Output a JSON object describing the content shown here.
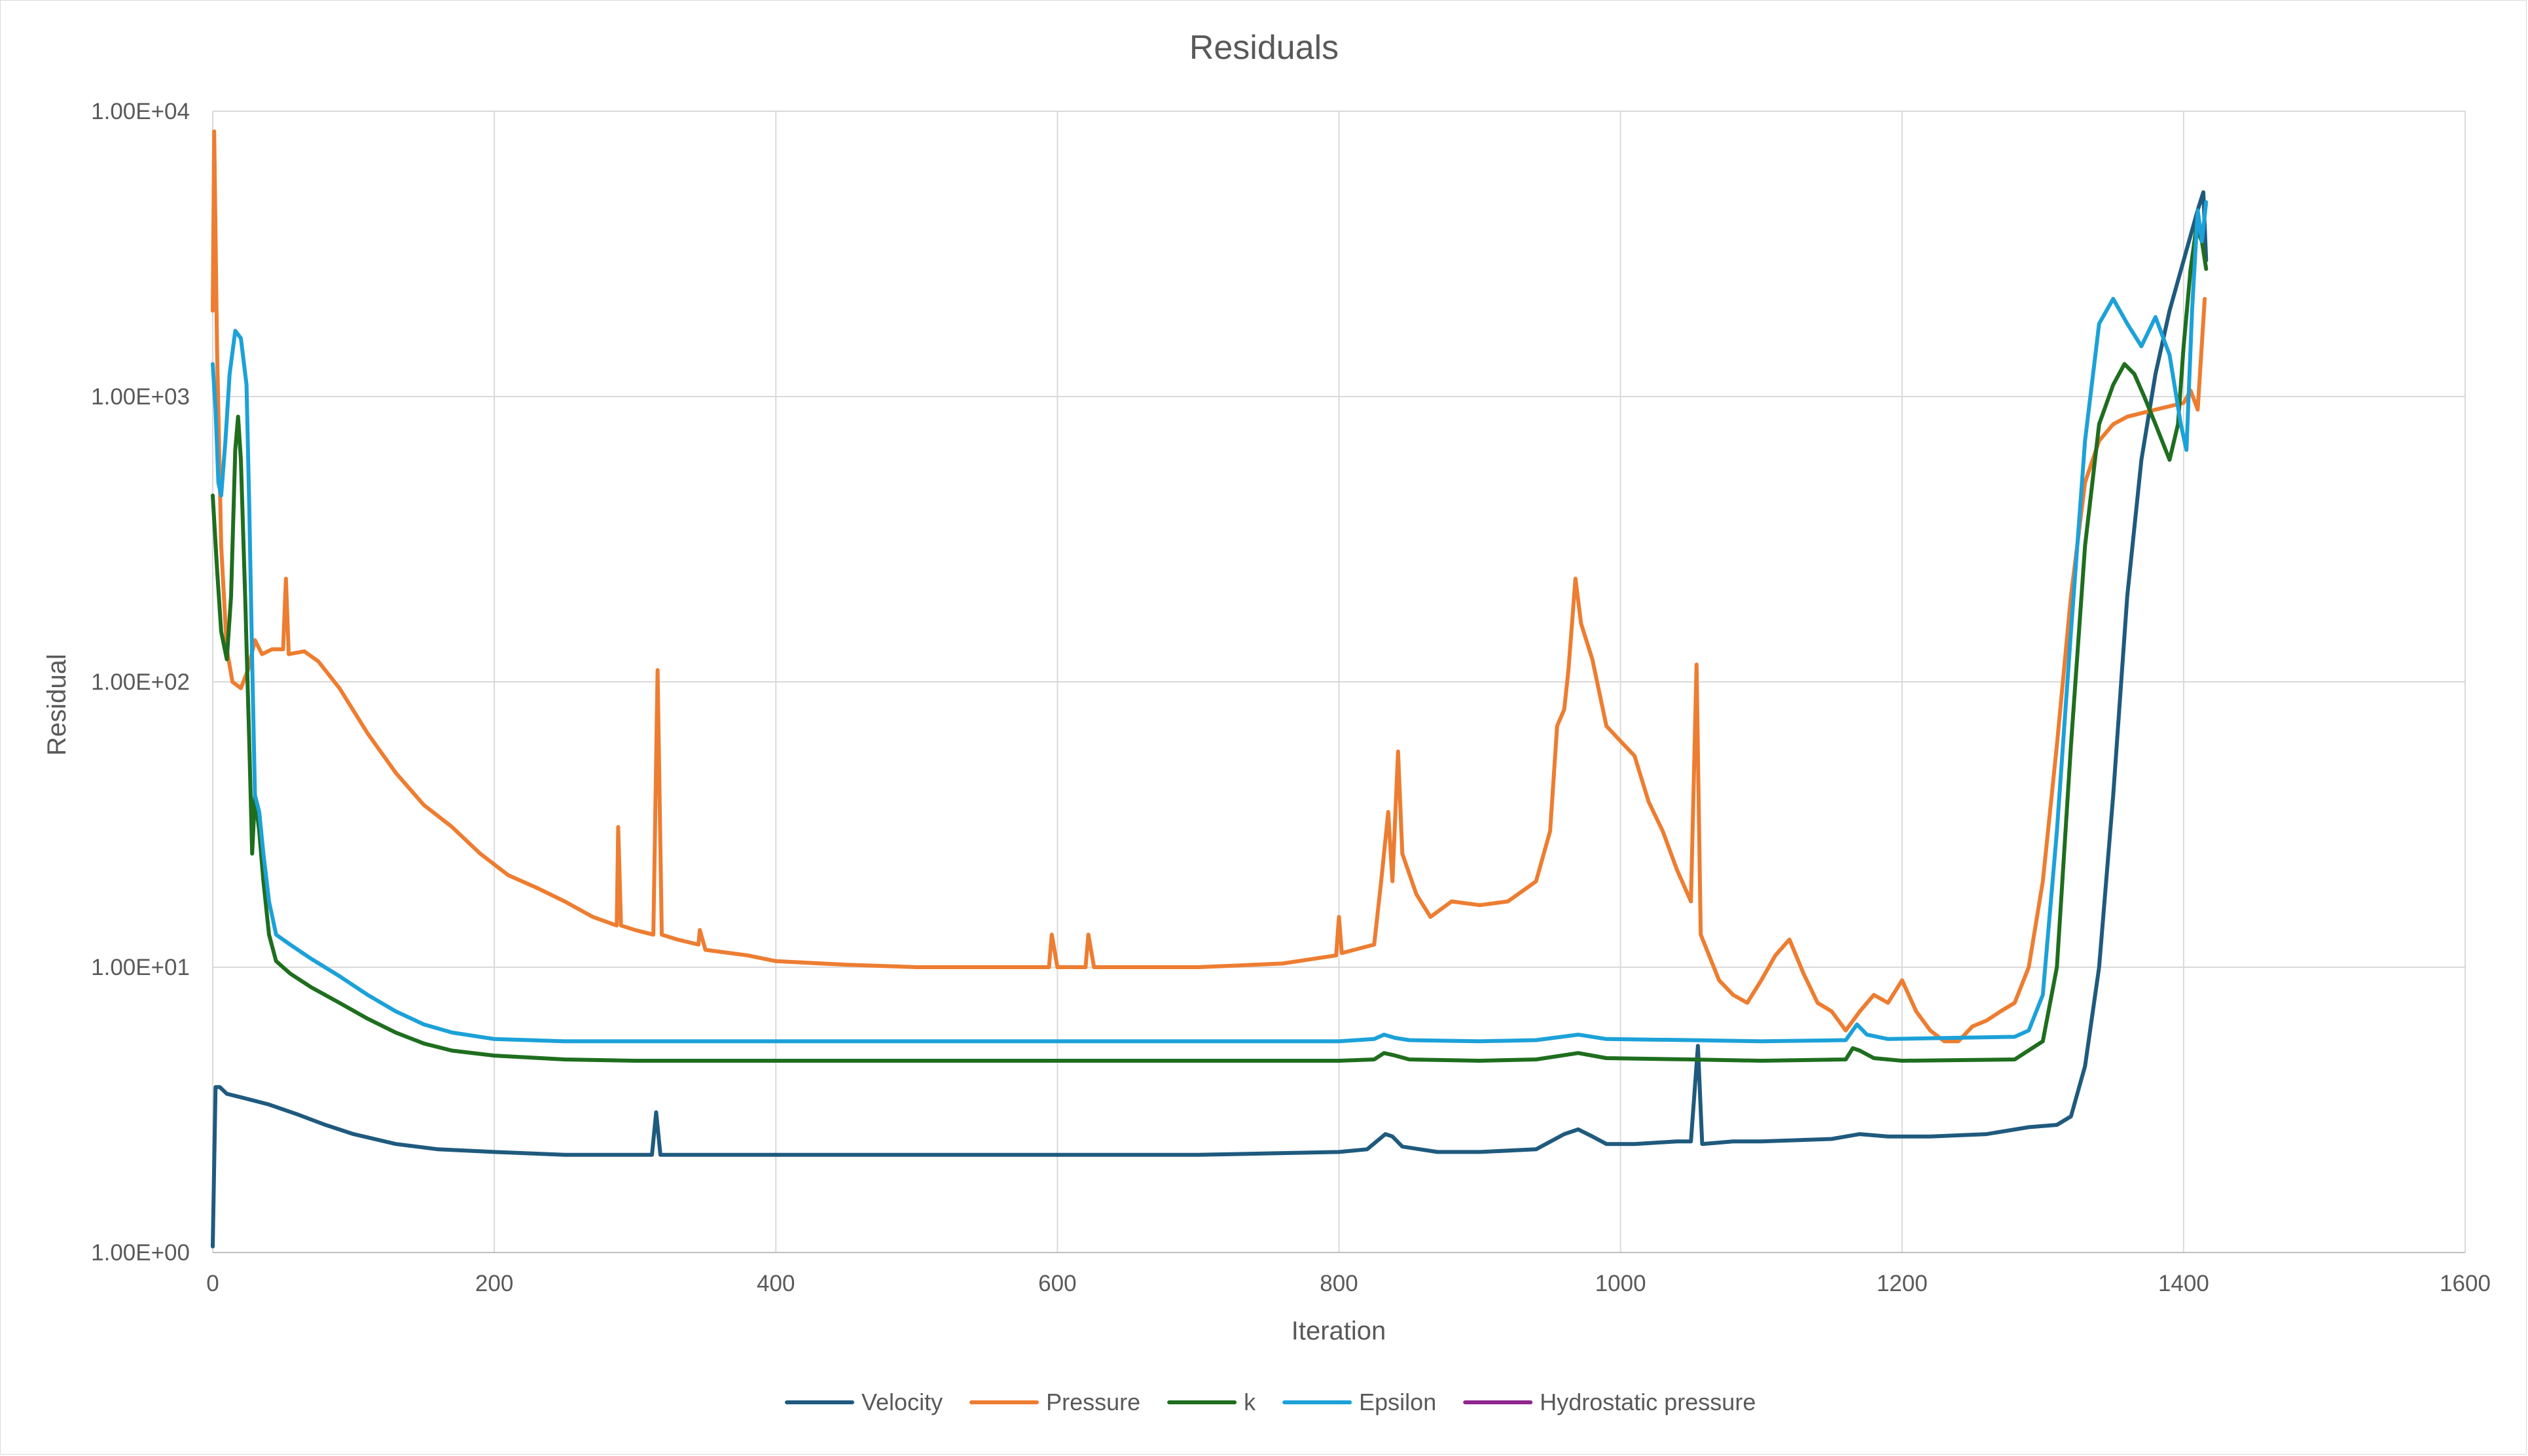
{
  "chart_data": {
    "type": "line",
    "title": "Residuals",
    "xlabel": "Iteration",
    "ylabel": "Residual",
    "x_scale": "linear",
    "y_scale": "log",
    "xlim": [
      0,
      1600
    ],
    "ylim": [
      1,
      10000
    ],
    "x_ticks": [
      0,
      200,
      400,
      600,
      800,
      1000,
      1200,
      1400,
      1600
    ],
    "x_tick_labels": [
      "0",
      "200",
      "400",
      "600",
      "800",
      "1000",
      "1200",
      "1400",
      "1600"
    ],
    "y_ticks": [
      1,
      10,
      100,
      1000,
      10000
    ],
    "y_tick_labels": [
      "1.00E+00",
      "1.00E+01",
      "1.00E+02",
      "1.00E+03",
      "1.00E+04"
    ],
    "grid": true,
    "legend_position": "bottom",
    "series": [
      {
        "name": "Velocity",
        "color": "#1f5a7e",
        "points": [
          [
            0,
            1.05
          ],
          [
            2,
            3.8
          ],
          [
            5,
            3.8
          ],
          [
            10,
            3.6
          ],
          [
            20,
            3.5
          ],
          [
            40,
            3.3
          ],
          [
            60,
            3.05
          ],
          [
            80,
            2.8
          ],
          [
            100,
            2.6
          ],
          [
            130,
            2.4
          ],
          [
            160,
            2.3
          ],
          [
            200,
            2.25
          ],
          [
            250,
            2.2
          ],
          [
            300,
            2.2
          ],
          [
            312,
            2.2
          ],
          [
            315,
            3.1
          ],
          [
            318,
            2.2
          ],
          [
            350,
            2.2
          ],
          [
            400,
            2.2
          ],
          [
            500,
            2.2
          ],
          [
            600,
            2.2
          ],
          [
            700,
            2.2
          ],
          [
            800,
            2.25
          ],
          [
            820,
            2.3
          ],
          [
            833,
            2.6
          ],
          [
            838,
            2.55
          ],
          [
            845,
            2.35
          ],
          [
            870,
            2.25
          ],
          [
            900,
            2.25
          ],
          [
            940,
            2.3
          ],
          [
            960,
            2.6
          ],
          [
            970,
            2.7
          ],
          [
            980,
            2.55
          ],
          [
            990,
            2.4
          ],
          [
            1010,
            2.4
          ],
          [
            1040,
            2.45
          ],
          [
            1050,
            2.45
          ],
          [
            1055,
            5.3
          ],
          [
            1058,
            2.4
          ],
          [
            1080,
            2.45
          ],
          [
            1100,
            2.45
          ],
          [
            1150,
            2.5
          ],
          [
            1170,
            2.6
          ],
          [
            1190,
            2.55
          ],
          [
            1220,
            2.55
          ],
          [
            1260,
            2.6
          ],
          [
            1290,
            2.75
          ],
          [
            1310,
            2.8
          ],
          [
            1320,
            3.0
          ],
          [
            1330,
            4.5
          ],
          [
            1340,
            10
          ],
          [
            1350,
            40
          ],
          [
            1360,
            200
          ],
          [
            1370,
            600
          ],
          [
            1380,
            1200
          ],
          [
            1390,
            2000
          ],
          [
            1400,
            3000
          ],
          [
            1410,
            4500
          ],
          [
            1414,
            5200
          ],
          [
            1416,
            3000
          ]
        ]
      },
      {
        "name": "Pressure",
        "color": "#ed7d31",
        "points": [
          [
            0,
            2000
          ],
          [
            1,
            8500
          ],
          [
            3,
            1500
          ],
          [
            6,
            300
          ],
          [
            10,
            130
          ],
          [
            14,
            100
          ],
          [
            20,
            95
          ],
          [
            25,
            110
          ],
          [
            30,
            140
          ],
          [
            35,
            125
          ],
          [
            42,
            130
          ],
          [
            50,
            130
          ],
          [
            52,
            230
          ],
          [
            54,
            125
          ],
          [
            65,
            128
          ],
          [
            75,
            118
          ],
          [
            90,
            95
          ],
          [
            110,
            66
          ],
          [
            130,
            48
          ],
          [
            150,
            37
          ],
          [
            170,
            31
          ],
          [
            190,
            25
          ],
          [
            210,
            21
          ],
          [
            230,
            19
          ],
          [
            250,
            17
          ],
          [
            270,
            15
          ],
          [
            287,
            14
          ],
          [
            288,
            31
          ],
          [
            290,
            14
          ],
          [
            300,
            13.5
          ],
          [
            313,
            13
          ],
          [
            316,
            110
          ],
          [
            319,
            13
          ],
          [
            330,
            12.5
          ],
          [
            345,
            12
          ],
          [
            346,
            13.5
          ],
          [
            350,
            11.5
          ],
          [
            380,
            11
          ],
          [
            400,
            10.5
          ],
          [
            450,
            10.2
          ],
          [
            500,
            10
          ],
          [
            550,
            10
          ],
          [
            594,
            10
          ],
          [
            596,
            13
          ],
          [
            600,
            10
          ],
          [
            620,
            10
          ],
          [
            622,
            13
          ],
          [
            626,
            10
          ],
          [
            700,
            10
          ],
          [
            760,
            10.3
          ],
          [
            798,
            11
          ],
          [
            800,
            15
          ],
          [
            802,
            11.2
          ],
          [
            825,
            12
          ],
          [
            830,
            20
          ],
          [
            835,
            35
          ],
          [
            838,
            20
          ],
          [
            842,
            57
          ],
          [
            845,
            25
          ],
          [
            855,
            18
          ],
          [
            865,
            15
          ],
          [
            880,
            17
          ],
          [
            900,
            16.5
          ],
          [
            920,
            17
          ],
          [
            940,
            20
          ],
          [
            950,
            30
          ],
          [
            955,
            70
          ],
          [
            960,
            80
          ],
          [
            963,
            110
          ],
          [
            968,
            230
          ],
          [
            972,
            160
          ],
          [
            980,
            120
          ],
          [
            990,
            70
          ],
          [
            1000,
            62
          ],
          [
            1010,
            55
          ],
          [
            1020,
            38
          ],
          [
            1030,
            30
          ],
          [
            1040,
            22
          ],
          [
            1050,
            17
          ],
          [
            1054,
            115
          ],
          [
            1057,
            13
          ],
          [
            1070,
            9
          ],
          [
            1080,
            8
          ],
          [
            1090,
            7.5
          ],
          [
            1100,
            9
          ],
          [
            1110,
            11
          ],
          [
            1120,
            12.5
          ],
          [
            1130,
            9.5
          ],
          [
            1140,
            7.5
          ],
          [
            1150,
            7
          ],
          [
            1160,
            6
          ],
          [
            1170,
            7
          ],
          [
            1180,
            8
          ],
          [
            1190,
            7.5
          ],
          [
            1200,
            9
          ],
          [
            1210,
            7
          ],
          [
            1220,
            6
          ],
          [
            1230,
            5.5
          ],
          [
            1240,
            5.5
          ],
          [
            1250,
            6.2
          ],
          [
            1260,
            6.5
          ],
          [
            1270,
            7
          ],
          [
            1280,
            7.5
          ],
          [
            1290,
            10
          ],
          [
            1300,
            20
          ],
          [
            1310,
            60
          ],
          [
            1320,
            200
          ],
          [
            1330,
            500
          ],
          [
            1340,
            700
          ],
          [
            1350,
            800
          ],
          [
            1360,
            850
          ],
          [
            1380,
            900
          ],
          [
            1400,
            950
          ],
          [
            1405,
            1050
          ],
          [
            1410,
            900
          ],
          [
            1415,
            2200
          ]
        ]
      },
      {
        "name": "k",
        "color": "#1e6e1e",
        "points": [
          [
            0,
            450
          ],
          [
            3,
            250
          ],
          [
            6,
            150
          ],
          [
            10,
            120
          ],
          [
            13,
            200
          ],
          [
            16,
            650
          ],
          [
            18,
            850
          ],
          [
            20,
            600
          ],
          [
            23,
            200
          ],
          [
            26,
            60
          ],
          [
            28,
            25
          ],
          [
            30,
            40
          ],
          [
            33,
            30
          ],
          [
            36,
            20
          ],
          [
            40,
            13
          ],
          [
            45,
            10.5
          ],
          [
            55,
            9.5
          ],
          [
            70,
            8.5
          ],
          [
            90,
            7.5
          ],
          [
            110,
            6.6
          ],
          [
            130,
            5.9
          ],
          [
            150,
            5.4
          ],
          [
            170,
            5.1
          ],
          [
            200,
            4.9
          ],
          [
            250,
            4.75
          ],
          [
            300,
            4.7
          ],
          [
            400,
            4.7
          ],
          [
            500,
            4.7
          ],
          [
            600,
            4.7
          ],
          [
            700,
            4.7
          ],
          [
            800,
            4.7
          ],
          [
            825,
            4.75
          ],
          [
            832,
            5.0
          ],
          [
            840,
            4.9
          ],
          [
            850,
            4.75
          ],
          [
            900,
            4.7
          ],
          [
            940,
            4.75
          ],
          [
            970,
            5.0
          ],
          [
            990,
            4.8
          ],
          [
            1050,
            4.75
          ],
          [
            1100,
            4.7
          ],
          [
            1160,
            4.75
          ],
          [
            1165,
            5.2
          ],
          [
            1170,
            5.1
          ],
          [
            1180,
            4.8
          ],
          [
            1200,
            4.7
          ],
          [
            1280,
            4.75
          ],
          [
            1300,
            5.5
          ],
          [
            1310,
            10
          ],
          [
            1320,
            60
          ],
          [
            1330,
            300
          ],
          [
            1340,
            800
          ],
          [
            1350,
            1100
          ],
          [
            1358,
            1300
          ],
          [
            1365,
            1200
          ],
          [
            1372,
            1000
          ],
          [
            1380,
            800
          ],
          [
            1390,
            600
          ],
          [
            1396,
            800
          ],
          [
            1400,
            1500
          ],
          [
            1405,
            2800
          ],
          [
            1409,
            3900
          ],
          [
            1413,
            3500
          ],
          [
            1416,
            2800
          ]
        ]
      },
      {
        "name": "Epsilon",
        "color": "#1ca1d8",
        "points": [
          [
            0,
            1300
          ],
          [
            2,
            900
          ],
          [
            4,
            500
          ],
          [
            6,
            450
          ],
          [
            9,
            700
          ],
          [
            12,
            1200
          ],
          [
            16,
            1700
          ],
          [
            20,
            1600
          ],
          [
            24,
            1100
          ],
          [
            26,
            400
          ],
          [
            28,
            120
          ],
          [
            30,
            40
          ],
          [
            33,
            35
          ],
          [
            36,
            25
          ],
          [
            40,
            17
          ],
          [
            45,
            13
          ],
          [
            55,
            12
          ],
          [
            70,
            10.7
          ],
          [
            90,
            9.3
          ],
          [
            110,
            8
          ],
          [
            130,
            7
          ],
          [
            150,
            6.3
          ],
          [
            170,
            5.9
          ],
          [
            200,
            5.6
          ],
          [
            250,
            5.5
          ],
          [
            300,
            5.5
          ],
          [
            400,
            5.5
          ],
          [
            500,
            5.5
          ],
          [
            600,
            5.5
          ],
          [
            700,
            5.5
          ],
          [
            800,
            5.5
          ],
          [
            825,
            5.6
          ],
          [
            832,
            5.8
          ],
          [
            840,
            5.65
          ],
          [
            850,
            5.55
          ],
          [
            900,
            5.5
          ],
          [
            940,
            5.55
          ],
          [
            970,
            5.8
          ],
          [
            990,
            5.6
          ],
          [
            1050,
            5.55
          ],
          [
            1100,
            5.5
          ],
          [
            1160,
            5.55
          ],
          [
            1168,
            6.3
          ],
          [
            1175,
            5.8
          ],
          [
            1190,
            5.6
          ],
          [
            1280,
            5.7
          ],
          [
            1290,
            6.0
          ],
          [
            1300,
            8
          ],
          [
            1310,
            30
          ],
          [
            1320,
            150
          ],
          [
            1330,
            700
          ],
          [
            1340,
            1800
          ],
          [
            1350,
            2200
          ],
          [
            1360,
            1800
          ],
          [
            1370,
            1500
          ],
          [
            1380,
            1900
          ],
          [
            1390,
            1400
          ],
          [
            1398,
            800
          ],
          [
            1402,
            650
          ],
          [
            1406,
            2000
          ],
          [
            1410,
            4500
          ],
          [
            1413,
            3500
          ],
          [
            1416,
            4800
          ]
        ]
      },
      {
        "name": "Hydrostatic pressure",
        "color": "#8e278e",
        "points": []
      }
    ]
  }
}
